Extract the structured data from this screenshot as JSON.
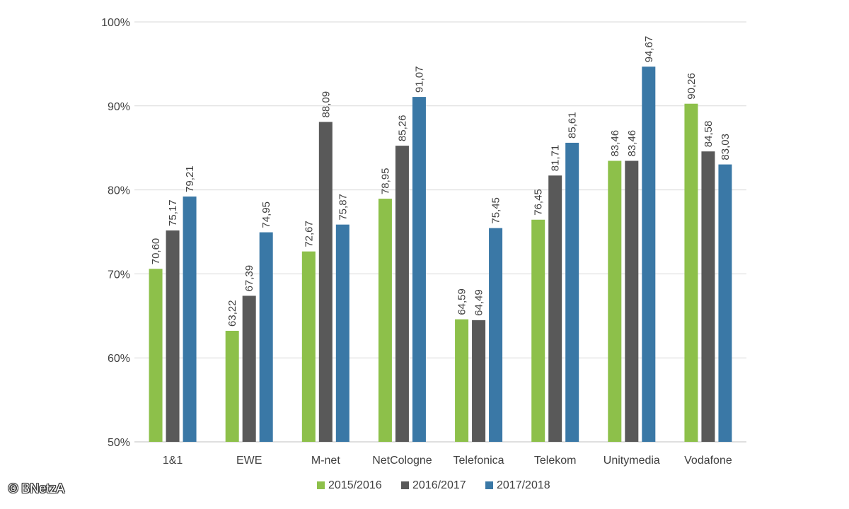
{
  "credit": "© BNetzA",
  "chart_data": {
    "type": "bar",
    "title": "",
    "xlabel": "",
    "ylabel": "",
    "ylim": [
      50,
      100
    ],
    "yticks": [
      50,
      60,
      70,
      80,
      90,
      100
    ],
    "ytick_labels": [
      "50%",
      "60%",
      "70%",
      "80%",
      "90%",
      "100%"
    ],
    "grid": true,
    "legend_position": "bottom",
    "categories": [
      "1&1",
      "EWE",
      "M-net",
      "NetCologne",
      "Telefonica",
      "Telekom",
      "Unitymedia",
      "Vodafone"
    ],
    "series": [
      {
        "name": "2015/2016",
        "color": "#8dc04a",
        "values": [
          70.6,
          63.22,
          72.67,
          78.95,
          64.59,
          76.45,
          83.46,
          90.26
        ],
        "labels": [
          "70,60",
          "63,22",
          "72,67",
          "78,95",
          "64,59",
          "76,45",
          "83,46",
          "90,26"
        ]
      },
      {
        "name": "2016/2017",
        "color": "#595959",
        "values": [
          75.17,
          67.39,
          88.09,
          85.26,
          64.49,
          81.71,
          83.46,
          84.58
        ],
        "labels": [
          "75,17",
          "67,39",
          "88,09",
          "85,26",
          "64,49",
          "81,71",
          "83,46",
          "84,58"
        ]
      },
      {
        "name": "2017/2018",
        "color": "#3a78a6",
        "values": [
          79.21,
          74.95,
          75.87,
          91.07,
          75.45,
          85.61,
          94.67,
          83.03
        ],
        "labels": [
          "79,21",
          "74,95",
          "75,87",
          "91,07",
          "75,45",
          "85,61",
          "94,67",
          "83,03"
        ]
      }
    ]
  }
}
